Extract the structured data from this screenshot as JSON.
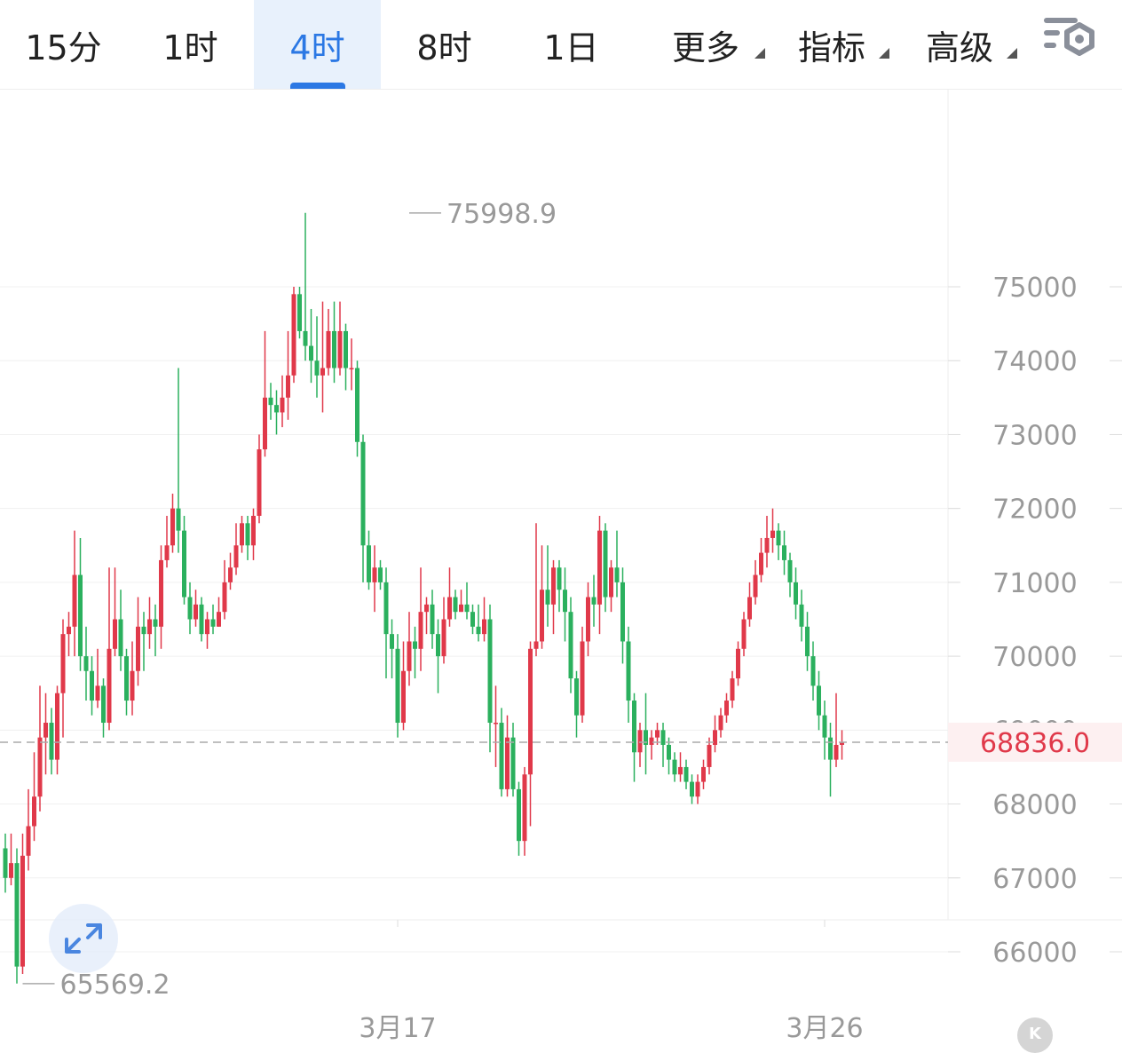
{
  "toolbar": {
    "tabs": [
      {
        "label": "15分",
        "active": false,
        "dropdown": false
      },
      {
        "label": "1时",
        "active": false,
        "dropdown": false
      },
      {
        "label": "4时",
        "active": true,
        "dropdown": false
      },
      {
        "label": "8时",
        "active": false,
        "dropdown": false
      },
      {
        "label": "1日",
        "active": false,
        "dropdown": false
      },
      {
        "label": "更多",
        "active": false,
        "dropdown": true
      },
      {
        "label": "指标",
        "active": false,
        "dropdown": true
      },
      {
        "label": "高级",
        "active": false,
        "dropdown": true
      }
    ],
    "settings_icon": "chart-settings-gear-icon"
  },
  "controls": {
    "expand_icon": "expand-arrows-icon",
    "k_button_label": "K"
  },
  "chart_data": {
    "type": "candlestick",
    "ylim": [
      65400,
      77700
    ],
    "y_ticks": [
      "75000",
      "74000",
      "73000",
      "72000",
      "71000",
      "70000",
      "69000",
      "68000",
      "67000",
      "66000"
    ],
    "x_ticks": [
      {
        "label": "3月17",
        "index": 68
      },
      {
        "label": "3月26",
        "index": 142
      }
    ],
    "high_label": {
      "value": "75998.9",
      "index": 70
    },
    "low_label": {
      "value": "65569.2",
      "index": 3
    },
    "last_price": "68836.0",
    "colors": {
      "up": "#e0394a",
      "down": "#2bb05e",
      "grid": "#f0f0f0",
      "axis_text": "#999999",
      "last_price": "#e0394a",
      "last_price_bg": "#fdf0f1"
    },
    "candles": [
      [
        67400,
        67000,
        67600,
        66800
      ],
      [
        67000,
        67200,
        67600,
        66900
      ],
      [
        67200,
        65800,
        67400,
        65570
      ],
      [
        65800,
        67300,
        67600,
        65700
      ],
      [
        67300,
        67700,
        68200,
        67100
      ],
      [
        67700,
        68100,
        68700,
        67500
      ],
      [
        68100,
        68900,
        69600,
        67900
      ],
      [
        68900,
        69100,
        69500,
        68400
      ],
      [
        69100,
        68600,
        69300,
        68400
      ],
      [
        68600,
        69500,
        69600,
        68400
      ],
      [
        69500,
        70300,
        70500,
        68900
      ],
      [
        70300,
        70400,
        70600,
        70000
      ],
      [
        70400,
        71100,
        71700,
        70000
      ],
      [
        71100,
        70000,
        71600,
        69800
      ],
      [
        70000,
        69800,
        70400,
        69400
      ],
      [
        69800,
        69400,
        70000,
        69200
      ],
      [
        69400,
        69600,
        70100,
        69300
      ],
      [
        69600,
        69100,
        69700,
        68900
      ],
      [
        69100,
        70100,
        71200,
        69000
      ],
      [
        70100,
        70500,
        71200,
        70000
      ],
      [
        70500,
        70000,
        70900,
        69800
      ],
      [
        70000,
        69400,
        70100,
        69200
      ],
      [
        69400,
        69800,
        70200,
        69200
      ],
      [
        69800,
        70400,
        70800,
        69600
      ],
      [
        70400,
        70300,
        70600,
        69800
      ],
      [
        70300,
        70500,
        70800,
        70100
      ],
      [
        70500,
        70400,
        70700,
        70000
      ],
      [
        70400,
        71300,
        71500,
        70100
      ],
      [
        71300,
        71500,
        71900,
        71200
      ],
      [
        71500,
        72000,
        72200,
        71400
      ],
      [
        72000,
        71700,
        73900,
        71400
      ],
      [
        71700,
        70800,
        71900,
        70700
      ],
      [
        70800,
        70500,
        71000,
        70300
      ],
      [
        70500,
        70700,
        70900,
        70400
      ],
      [
        70700,
        70300,
        70800,
        70200
      ],
      [
        70300,
        70500,
        70600,
        70100
      ],
      [
        70500,
        70400,
        70700,
        70300
      ],
      [
        70400,
        70600,
        70800,
        70400
      ],
      [
        70600,
        71000,
        71300,
        70500
      ],
      [
        71000,
        71200,
        71400,
        70900
      ],
      [
        71200,
        71500,
        71800,
        71100
      ],
      [
        71500,
        71800,
        71900,
        71400
      ],
      [
        71800,
        71500,
        71900,
        71300
      ],
      [
        71500,
        71900,
        72000,
        71300
      ],
      [
        71900,
        72800,
        73000,
        71800
      ],
      [
        72800,
        73500,
        74400,
        72700
      ],
      [
        73500,
        73400,
        73700,
        73200
      ],
      [
        73400,
        73300,
        73600,
        73000
      ],
      [
        73300,
        73500,
        73800,
        73100
      ],
      [
        73500,
        73800,
        74400,
        73200
      ],
      [
        73800,
        74900,
        75000,
        73700
      ],
      [
        74900,
        74400,
        75000,
        74300
      ],
      [
        74400,
        74200,
        76000,
        74000
      ],
      [
        74200,
        74000,
        74700,
        73700
      ],
      [
        74000,
        73800,
        74600,
        73500
      ],
      [
        73800,
        73900,
        74800,
        73300
      ],
      [
        73900,
        74400,
        74700,
        73800
      ],
      [
        74400,
        73900,
        74800,
        73700
      ],
      [
        73900,
        74400,
        74800,
        73800
      ],
      [
        74400,
        73900,
        74500,
        73600
      ],
      [
        73900,
        73900,
        74300,
        73600
      ],
      [
        73900,
        72900,
        74000,
        72700
      ],
      [
        72900,
        71500,
        73000,
        71000
      ],
      [
        71500,
        71000,
        71700,
        70900
      ],
      [
        71000,
        71200,
        71500,
        70600
      ],
      [
        71200,
        71000,
        71300,
        70900
      ],
      [
        71000,
        70300,
        71200,
        69700
      ],
      [
        70300,
        70100,
        70500,
        69700
      ],
      [
        70100,
        69100,
        70300,
        68900
      ],
      [
        69100,
        69800,
        70200,
        69000
      ],
      [
        69800,
        70200,
        70600,
        69600
      ],
      [
        70200,
        70100,
        70400,
        69700
      ],
      [
        70100,
        70600,
        71200,
        69800
      ],
      [
        70600,
        70700,
        70800,
        70300
      ],
      [
        70700,
        70300,
        70900,
        70100
      ],
      [
        70300,
        70000,
        70500,
        69500
      ],
      [
        70000,
        70500,
        70800,
        69900
      ],
      [
        70500,
        70800,
        71200,
        70400
      ],
      [
        70800,
        70600,
        70900,
        70500
      ],
      [
        70600,
        70700,
        70900,
        70600
      ],
      [
        70700,
        70600,
        71000,
        70500
      ],
      [
        70600,
        70400,
        70700,
        70300
      ],
      [
        70400,
        70300,
        70700,
        70200
      ],
      [
        70300,
        70500,
        70800,
        70200
      ],
      [
        70500,
        69100,
        70700,
        68700
      ],
      [
        69100,
        69100,
        69600,
        68500
      ],
      [
        69100,
        68200,
        69300,
        68100
      ],
      [
        68200,
        68900,
        69200,
        68100
      ],
      [
        68900,
        68200,
        69100,
        68100
      ],
      [
        68200,
        67500,
        68300,
        67300
      ],
      [
        67500,
        68400,
        68500,
        67300
      ],
      [
        68400,
        70100,
        70200,
        67700
      ],
      [
        70100,
        70200,
        71800,
        70000
      ],
      [
        70200,
        70900,
        71500,
        70100
      ],
      [
        70900,
        70700,
        71500,
        70400
      ],
      [
        70700,
        71200,
        71300,
        70300
      ],
      [
        71200,
        70900,
        71300,
        70600
      ],
      [
        70900,
        70600,
        71200,
        70200
      ],
      [
        70600,
        69700,
        70800,
        69500
      ],
      [
        69700,
        69200,
        69800,
        68900
      ],
      [
        69200,
        70200,
        70400,
        69100
      ],
      [
        70200,
        70800,
        71000,
        70000
      ],
      [
        70800,
        70700,
        71100,
        70400
      ],
      [
        70700,
        71700,
        71900,
        70300
      ],
      [
        71700,
        70800,
        71800,
        70600
      ],
      [
        70800,
        71200,
        71300,
        70600
      ],
      [
        71200,
        71000,
        71700,
        70800
      ],
      [
        71000,
        70200,
        71200,
        69900
      ],
      [
        70200,
        69400,
        70400,
        69100
      ],
      [
        69400,
        68700,
        69500,
        68300
      ],
      [
        68700,
        69000,
        69100,
        68500
      ],
      [
        69000,
        68800,
        69500,
        68400
      ],
      [
        68800,
        68900,
        69000,
        68600
      ],
      [
        68900,
        69000,
        69100,
        68800
      ],
      [
        69000,
        68800,
        69100,
        68500
      ],
      [
        68800,
        68600,
        68900,
        68400
      ],
      [
        68600,
        68400,
        68700,
        68300
      ],
      [
        68400,
        68500,
        68700,
        68300
      ],
      [
        68500,
        68300,
        68600,
        68200
      ],
      [
        68300,
        68100,
        68400,
        68000
      ],
      [
        68100,
        68300,
        68400,
        68000
      ],
      [
        68300,
        68500,
        68600,
        68200
      ],
      [
        68500,
        68800,
        68900,
        68400
      ],
      [
        68800,
        69000,
        69200,
        68700
      ],
      [
        69000,
        69200,
        69300,
        68900
      ],
      [
        69200,
        69400,
        69500,
        69100
      ],
      [
        69400,
        69700,
        69800,
        69300
      ],
      [
        69700,
        70100,
        70200,
        69600
      ],
      [
        70100,
        70500,
        70600,
        70000
      ],
      [
        70500,
        70800,
        71000,
        70400
      ],
      [
        70800,
        71100,
        71300,
        70700
      ],
      [
        71100,
        71400,
        71600,
        71000
      ],
      [
        71400,
        71600,
        71900,
        71200
      ],
      [
        71600,
        71700,
        72000,
        71400
      ],
      [
        71700,
        71500,
        71800,
        71300
      ],
      [
        71500,
        71300,
        71700,
        71100
      ],
      [
        71300,
        71000,
        71400,
        70800
      ],
      [
        71000,
        70700,
        71200,
        70500
      ],
      [
        70700,
        70400,
        70900,
        70200
      ],
      [
        70400,
        70000,
        70600,
        69800
      ],
      [
        70000,
        69600,
        70200,
        69400
      ],
      [
        69600,
        69200,
        69800,
        69000
      ],
      [
        69200,
        68900,
        69400,
        68600
      ],
      [
        68900,
        68600,
        69100,
        68100
      ],
      [
        68600,
        68800,
        69500,
        68500
      ],
      [
        68800,
        68836,
        69000,
        68600
      ]
    ]
  }
}
